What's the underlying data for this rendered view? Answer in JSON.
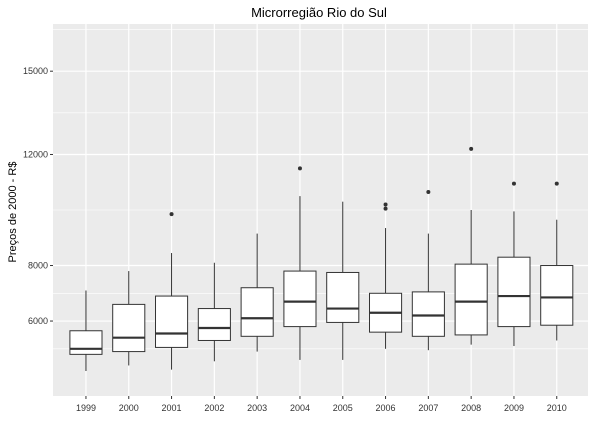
{
  "chart_data": {
    "type": "boxplot",
    "title": "Microrregião  Rio do Sul",
    "xlabel": "",
    "ylabel": "Preços de 2000 - R$",
    "categories": [
      "1999",
      "2000",
      "2001",
      "2002",
      "2003",
      "2004",
      "2005",
      "2006",
      "2007",
      "2008",
      "2009",
      "2010"
    ],
    "boxes": [
      {
        "min": 4200,
        "q1": 4800,
        "median": 5000,
        "q3": 5650,
        "max": 7100,
        "outliers": []
      },
      {
        "min": 4400,
        "q1": 4900,
        "median": 5400,
        "q3": 6600,
        "max": 7800,
        "outliers": []
      },
      {
        "min": 4250,
        "q1": 5050,
        "median": 5550,
        "q3": 6900,
        "max": 8450,
        "outliers": [
          9850
        ]
      },
      {
        "min": 4550,
        "q1": 5300,
        "median": 5750,
        "q3": 6450,
        "max": 8100,
        "outliers": []
      },
      {
        "min": 4900,
        "q1": 5450,
        "median": 6100,
        "q3": 7200,
        "max": 9150,
        "outliers": []
      },
      {
        "min": 4600,
        "q1": 5800,
        "median": 6700,
        "q3": 7800,
        "max": 10500,
        "outliers": [
          11500
        ]
      },
      {
        "min": 4600,
        "q1": 5950,
        "median": 6450,
        "q3": 7750,
        "max": 10300,
        "outliers": []
      },
      {
        "min": 5000,
        "q1": 5600,
        "median": 6300,
        "q3": 7000,
        "max": 9350,
        "outliers": [
          10050,
          10200
        ]
      },
      {
        "min": 4950,
        "q1": 5450,
        "median": 6200,
        "q3": 7050,
        "max": 9150,
        "outliers": [
          10650
        ]
      },
      {
        "min": 5150,
        "q1": 5500,
        "median": 6700,
        "q3": 8050,
        "max": 10000,
        "outliers": [
          12200
        ]
      },
      {
        "min": 5100,
        "q1": 5800,
        "median": 6900,
        "q3": 8300,
        "max": 9950,
        "outliers": [
          10950
        ]
      },
      {
        "min": 5300,
        "q1": 5850,
        "median": 6850,
        "q3": 8000,
        "max": 9650,
        "outliers": [
          10950
        ]
      }
    ],
    "yticks": [
      6000,
      8000,
      12000,
      15000
    ],
    "ylim": [
      3800,
      12450
    ],
    "grid": true,
    "colors": {
      "panel": "#ebebeb",
      "grid": "#ffffff",
      "box_fill": "#ffffff",
      "line": "#333333"
    }
  }
}
